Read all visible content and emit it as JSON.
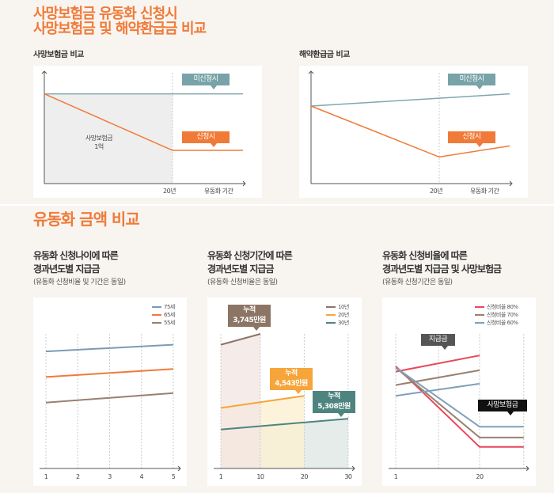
{
  "header": {
    "title_line1": "사망보험금 유동화 신청시",
    "title_line2": "사망보험금 및 해약환급금 비교"
  },
  "section1": {
    "left": {
      "title": "사망보험금 비교",
      "tag_no": "미신청시",
      "tag_yes": "신청시",
      "area_label1": "사망보험금",
      "area_label2": "1억",
      "x_tick": "20년",
      "x_label": "유동화 기간"
    },
    "right": {
      "title": "해약환급금 비교",
      "tag_no": "미신청시",
      "tag_yes": "신청시",
      "x_tick": "20년",
      "x_label": "유동화 기간"
    }
  },
  "section2": {
    "title": "유동화 금액 비교",
    "chartA": {
      "title1": "유동화 신청나이에 따른",
      "title2": "경과년도별 지급금",
      "note": "(유동화 신청비율 및 기간은 동일)"
    },
    "chartB": {
      "title1": "유동화 신청기간에 따른",
      "title2": "경과년도별 지급금",
      "note": "(유동화 신청비율은 동일)",
      "callouts": [
        {
          "l1": "누적",
          "l2": "3,745만원"
        },
        {
          "l1": "누적",
          "l2": "4,543만원"
        },
        {
          "l1": "누적",
          "l2": "5,308만원"
        }
      ]
    },
    "chartC": {
      "title1": "유동화 신청비율에 따른",
      "title2": "경과년도별 지급금 및 사망보험금",
      "note": "(유동화 신청기간은 동일)",
      "tag_pay": "지급금",
      "tag_death": "사망보험금"
    }
  },
  "colors": {
    "orange": "#f07a38",
    "teal": "#78a3a8",
    "gray_fill": "#eeeeee"
  },
  "chart_data": [
    {
      "type": "line",
      "title": "사망보험금 비교",
      "xlabel": "유동화 기간",
      "series": [
        {
          "name": "미신청시",
          "color": "#7fa7ad",
          "points": [
            [
              0,
              81
            ],
            [
              31,
              81
            ]
          ]
        },
        {
          "name": "신청시",
          "color": "#f07a38",
          "points": [
            [
              0,
              81
            ],
            [
              20,
              30
            ],
            [
              31,
              30
            ]
          ]
        }
      ],
      "marker_x": 20
    },
    {
      "type": "line",
      "title": "해약환급금 비교",
      "xlabel": "유동화 기간",
      "series": [
        {
          "name": "미신청시",
          "color": "#7fa7ad",
          "points": [
            [
              0,
              70
            ],
            [
              31,
              81
            ]
          ]
        },
        {
          "name": "신청시",
          "color": "#f07a38",
          "points": [
            [
              0,
              70
            ],
            [
              20,
              24
            ],
            [
              31,
              34
            ]
          ]
        }
      ],
      "marker_x": 20
    },
    {
      "type": "line",
      "title": "유동화 신청나이에 따른 경과년도별 지급금",
      "x_ticks": [
        "1",
        "2",
        "3",
        "4",
        "5"
      ],
      "series": [
        {
          "name": "75세",
          "color": "#7b9bb5",
          "points": [
            [
              1,
              87
            ],
            [
              5,
              92
            ]
          ]
        },
        {
          "name": "65세",
          "color": "#f07a38",
          "points": [
            [
              1,
              68
            ],
            [
              5,
              74
            ]
          ]
        },
        {
          "name": "55세",
          "color": "#9a7f70",
          "points": [
            [
              1,
              49
            ],
            [
              5,
              56
            ]
          ]
        }
      ]
    },
    {
      "type": "area",
      "title": "유동화 신청기간에 따른 경과년도별 지급금",
      "x_ticks": [
        "1",
        "10",
        "20",
        "30"
      ],
      "series": [
        {
          "name": "10년",
          "color": "#8c7565",
          "fill": "#f3e6e3",
          "points": [
            [
              1,
              92
            ],
            [
              10,
              100
            ]
          ]
        },
        {
          "name": "20년",
          "color": "#f6a53b",
          "fill": "#fdf0d2",
          "points": [
            [
              1,
              45
            ],
            [
              20,
              54
            ]
          ]
        },
        {
          "name": "30년",
          "color": "#4e8480",
          "fill": "#dfe7e4",
          "points": [
            [
              1,
              29
            ],
            [
              30,
              37
            ]
          ]
        }
      ]
    },
    {
      "type": "line",
      "title": "유동화 신청비율에 따른 경과년도별 지급금 및 사망보험금",
      "x_ticks": [
        "1",
        "20"
      ],
      "series": [
        {
          "name": "신청비율 80%",
          "color": "#e8475a",
          "pay": [
            [
              1,
              72
            ],
            [
              20,
              84
            ]
          ],
          "death": [
            [
              1,
              76
            ],
            [
              20,
              16
            ],
            [
              30,
              16
            ]
          ]
        },
        {
          "name": "신청비율 70%",
          "color": "#9a8070",
          "pay": [
            [
              1,
              62
            ],
            [
              20,
              73
            ]
          ],
          "death": [
            [
              1,
              75
            ],
            [
              20,
              23
            ],
            [
              30,
              23
            ]
          ]
        },
        {
          "name": "신청비율 60%",
          "color": "#7fa0b8",
          "pay": [
            [
              1,
              54
            ],
            [
              20,
              63
            ]
          ],
          "death": [
            [
              1,
              75
            ],
            [
              20,
              31
            ],
            [
              30,
              31
            ]
          ]
        }
      ]
    }
  ]
}
